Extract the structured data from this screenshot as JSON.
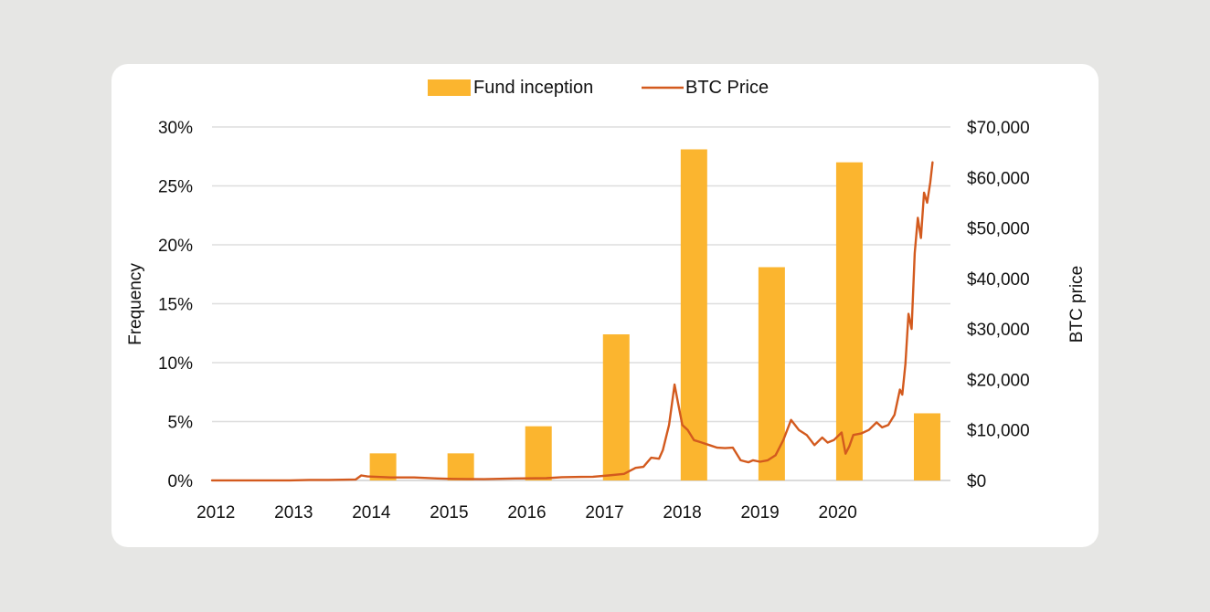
{
  "chart_data": {
    "type": "bar",
    "categories": [
      "2012",
      "2013",
      "2014",
      "2015",
      "2016",
      "2017",
      "2018",
      "2019",
      "2020"
    ],
    "ylabel": "Frequency",
    "y2label": "BTC price",
    "ylim": [
      0,
      30
    ],
    "y2lim": [
      0,
      70000
    ],
    "y_ticks": [
      "0%",
      "5%",
      "10%",
      "15%",
      "20%",
      "25%",
      "30%"
    ],
    "y2_ticks": [
      "$0",
      "$10,000",
      "$20,000",
      "$30,000",
      "$40,000",
      "$50,000",
      "$60,000",
      "$70,000"
    ],
    "grid": true,
    "legend": "top-center",
    "series": [
      {
        "name": "Fund inception",
        "kind": "bar",
        "color": "#FBB52F",
        "x": [
          2014.2,
          2015.2,
          2016.2,
          2017.2,
          2018.2,
          2019.2,
          2020.2,
          2021.2
        ],
        "values": [
          2.3,
          2.3,
          4.6,
          12.4,
          28.1,
          18.1,
          27.0,
          5.7
        ]
      },
      {
        "name": "BTC Price",
        "kind": "line",
        "color": "#D35A1E",
        "x": [
          2012.0,
          2012.5,
          2013.0,
          2013.25,
          2013.5,
          2013.85,
          2013.92,
          2014.0,
          2014.3,
          2014.6,
          2014.9,
          2015.1,
          2015.5,
          2015.9,
          2016.3,
          2016.5,
          2016.9,
          2017.1,
          2017.3,
          2017.45,
          2017.55,
          2017.65,
          2017.75,
          2017.8,
          2017.88,
          2017.95,
          2018.0,
          2018.05,
          2018.12,
          2018.2,
          2018.3,
          2018.4,
          2018.5,
          2018.6,
          2018.7,
          2018.8,
          2018.85,
          2018.9,
          2018.96,
          2019.05,
          2019.15,
          2019.25,
          2019.35,
          2019.45,
          2019.5,
          2019.55,
          2019.65,
          2019.75,
          2019.85,
          2019.92,
          2020.0,
          2020.1,
          2020.15,
          2020.2,
          2020.25,
          2020.35,
          2020.45,
          2020.55,
          2020.62,
          2020.7,
          2020.78,
          2020.85,
          2020.88,
          2020.92,
          2020.96,
          2021.0,
          2021.04,
          2021.08,
          2021.12,
          2021.16,
          2021.2,
          2021.24,
          2021.27
        ],
        "values": [
          10,
          10,
          15,
          100,
          100,
          200,
          1000,
          800,
          600,
          600,
          400,
          300,
          250,
          400,
          450,
          650,
          750,
          1000,
          1300,
          2500,
          2700,
          4500,
          4300,
          6000,
          11000,
          19000,
          15000,
          11000,
          10000,
          8000,
          7500,
          7000,
          6500,
          6400,
          6500,
          4000,
          3800,
          3600,
          4000,
          3700,
          4000,
          5000,
          8000,
          12000,
          11000,
          10000,
          9000,
          7000,
          8500,
          7500,
          8000,
          9500,
          5300,
          6800,
          9000,
          9300,
          10000,
          11500,
          10500,
          11000,
          13000,
          18000,
          17000,
          23000,
          33000,
          30000,
          45000,
          52000,
          48000,
          57000,
          55000,
          59000,
          63000
        ]
      }
    ]
  }
}
